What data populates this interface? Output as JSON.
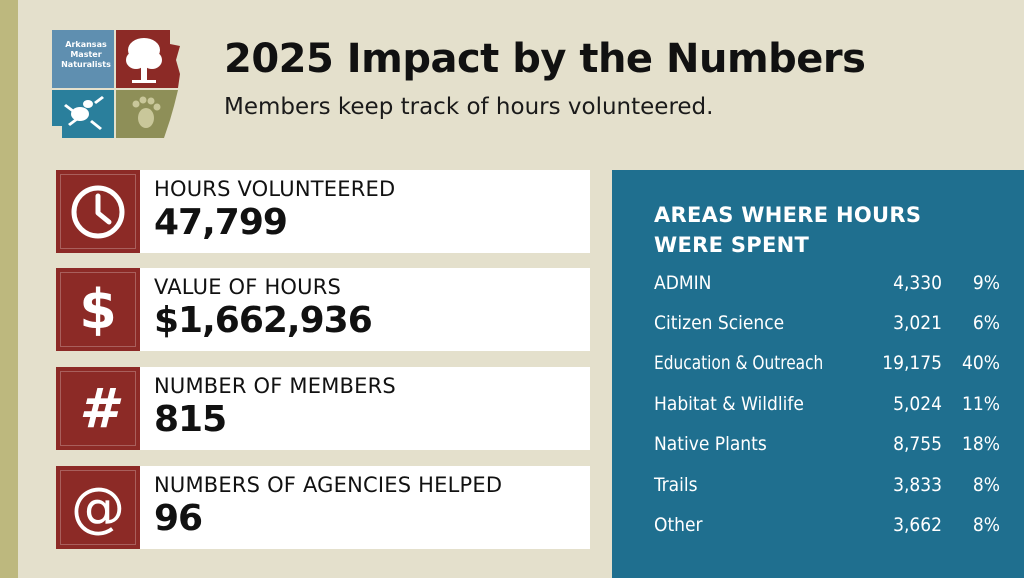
{
  "logo": {
    "text_line1": "Arkansas",
    "text_line2": "Master",
    "text_line3": "Naturalists",
    "colors": {
      "blue": "#5f8fb0",
      "red": "#8c2a26",
      "green": "#8e8f58",
      "teal": "#2a7f9c"
    }
  },
  "header": {
    "title": "2025 Impact by the Numbers",
    "subtitle": "Members keep track of hours volunteered."
  },
  "stats": [
    {
      "icon": "clock-icon",
      "label": "HOURS VOLUNTEERED",
      "value": "47,799"
    },
    {
      "icon": "dollar-icon",
      "glyph": "$",
      "label": "VALUE OF HOURS",
      "value": "$1,662,936"
    },
    {
      "icon": "hash-icon",
      "glyph": "#",
      "label": "NUMBER OF MEMBERS",
      "value": "815"
    },
    {
      "icon": "at-icon",
      "glyph": "@",
      "label": "NUMBERS OF AGENCIES HELPED",
      "value": "96"
    }
  ],
  "areas": {
    "title": "AREAS WHERE HOURS WERE SPENT",
    "rows": [
      {
        "name": "ADMIN",
        "hours": "4,330",
        "percent": "9%"
      },
      {
        "name": "Citizen Science",
        "hours": "3,021",
        "percent": "6%"
      },
      {
        "name": "Education & Outreach",
        "hours": "19,175",
        "percent": "40%"
      },
      {
        "name": "Habitat & Wildlife",
        "hours": "5,024",
        "percent": "11%"
      },
      {
        "name": "Native Plants",
        "hours": "8,755",
        "percent": "18%"
      },
      {
        "name": "Trails",
        "hours": "3,833",
        "percent": "8%"
      },
      {
        "name": "Other",
        "hours": "3,662",
        "percent": "8%"
      }
    ]
  },
  "colors": {
    "background": "#e4e0cc",
    "left_bar": "#bdb87e",
    "stat_icon_bg": "#8c2a26",
    "panel_bg": "#1f6f8f"
  }
}
